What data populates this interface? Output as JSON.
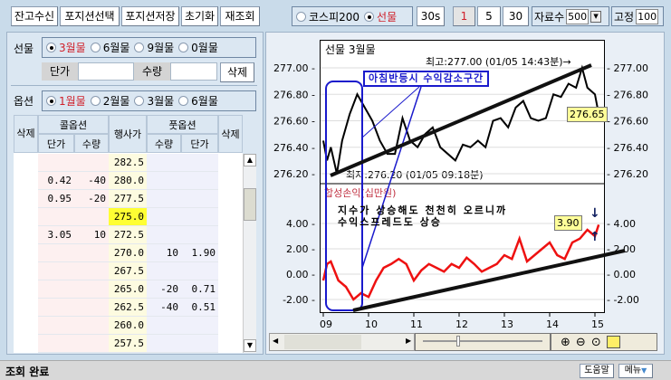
{
  "toolbar": {
    "buttons": [
      "잔고수신",
      "포지션선택",
      "포지션저장",
      "초기화",
      "재조회"
    ]
  },
  "left": {
    "futures": {
      "label": "선물",
      "months": [
        "3월물",
        "6월물",
        "9월물",
        "0월물"
      ],
      "selected": 0,
      "price_label": "단가",
      "price_value": "",
      "qty_label": "수량",
      "qty_value": "",
      "delete": "삭제"
    },
    "options": {
      "label": "옵션",
      "months": [
        "1월물",
        "2월물",
        "3월물",
        "6월물"
      ],
      "selected": 0
    },
    "table": {
      "headers": {
        "del": "삭제",
        "call": "콜옵션",
        "put": "풋옵션",
        "strike": "행사가",
        "price": "단가",
        "qty": "수량"
      },
      "atm": "275.0",
      "rows": [
        {
          "call_price": "",
          "call_qty": "",
          "strike": "282.5",
          "put_qty": "",
          "put_price": ""
        },
        {
          "call_price": "0.42",
          "call_qty": "-40",
          "strike": "280.0",
          "put_qty": "",
          "put_price": ""
        },
        {
          "call_price": "0.95",
          "call_qty": "-20",
          "strike": "277.5",
          "put_qty": "",
          "put_price": ""
        },
        {
          "call_price": "",
          "call_qty": "",
          "strike": "275.0",
          "put_qty": "",
          "put_price": ""
        },
        {
          "call_price": "3.05",
          "call_qty": "10",
          "strike": "272.5",
          "put_qty": "",
          "put_price": ""
        },
        {
          "call_price": "",
          "call_qty": "",
          "strike": "270.0",
          "put_qty": "10",
          "put_price": "1.90"
        },
        {
          "call_price": "",
          "call_qty": "",
          "strike": "267.5",
          "put_qty": "",
          "put_price": ""
        },
        {
          "call_price": "",
          "call_qty": "",
          "strike": "265.0",
          "put_qty": "-20",
          "put_price": "0.71"
        },
        {
          "call_price": "",
          "call_qty": "",
          "strike": "262.5",
          "put_qty": "-40",
          "put_price": "0.51"
        },
        {
          "call_price": "",
          "call_qty": "",
          "strike": "260.0",
          "put_qty": "",
          "put_price": ""
        },
        {
          "call_price": "",
          "call_qty": "",
          "strike": "257.5",
          "put_qty": "",
          "put_price": ""
        }
      ]
    }
  },
  "right": {
    "source": {
      "options": [
        "코스피200",
        "선물"
      ],
      "selected": 1
    },
    "intervals": [
      "30s",
      "1",
      "5",
      "30"
    ],
    "interval_selected": 1,
    "count_label": "자료수",
    "count_value": "500",
    "fixed_label": "고정",
    "fixed_value": "100"
  },
  "status": {
    "text": "조회 완료",
    "help": "도움말",
    "menu": "메뉴"
  },
  "chart_data": [
    {
      "type": "line",
      "title": "선물 3월물",
      "ylim": [
        276.1,
        277.2
      ],
      "yticks": [
        "277.00",
        "276.80",
        "276.60",
        "276.40",
        "276.20"
      ],
      "current": "276.65",
      "high_label": "최고:277.00 (01/05 14:43분)→",
      "low_label": "최저:276.20 (01/05 09:18분)",
      "color": "#000000",
      "x": [
        "09:00",
        "09:05",
        "09:10",
        "09:18",
        "09:25",
        "09:35",
        "09:45",
        "09:55",
        "10:05",
        "10:15",
        "10:25",
        "10:35",
        "10:45",
        "10:55",
        "11:05",
        "11:15",
        "11:25",
        "11:35",
        "11:45",
        "11:55",
        "12:05",
        "12:15",
        "12:25",
        "12:35",
        "12:45",
        "12:55",
        "13:05",
        "13:15",
        "13:25",
        "13:35",
        "13:45",
        "13:55",
        "14:05",
        "14:15",
        "14:25",
        "14:35",
        "14:43",
        "14:50",
        "15:00",
        "15:05"
      ],
      "values": [
        276.45,
        276.3,
        276.4,
        276.2,
        276.45,
        276.65,
        276.8,
        276.7,
        276.6,
        276.45,
        276.35,
        276.35,
        276.62,
        276.45,
        276.4,
        276.5,
        276.55,
        276.4,
        276.35,
        276.3,
        276.42,
        276.4,
        276.45,
        276.4,
        276.6,
        276.62,
        276.55,
        276.7,
        276.75,
        276.62,
        276.6,
        276.62,
        276.8,
        276.78,
        276.88,
        276.85,
        277.0,
        276.85,
        276.8,
        276.65
      ]
    },
    {
      "type": "line",
      "title": "합성손익(십만원)",
      "ylim": [
        -3,
        6
      ],
      "yticks": [
        "4.00",
        "2.00",
        "0.00",
        "-2.00"
      ],
      "current": "3.90",
      "color": "#ee1111",
      "xticks": [
        "09",
        "10",
        "11",
        "12",
        "13",
        "14",
        "15"
      ],
      "x": [
        "09:00",
        "09:05",
        "09:10",
        "09:20",
        "09:30",
        "09:40",
        "09:50",
        "10:00",
        "10:10",
        "10:20",
        "10:30",
        "10:40",
        "10:50",
        "11:00",
        "11:10",
        "11:20",
        "11:30",
        "11:40",
        "11:50",
        "12:00",
        "12:10",
        "12:20",
        "12:30",
        "12:40",
        "12:50",
        "13:00",
        "13:10",
        "13:20",
        "13:30",
        "13:40",
        "13:50",
        "14:00",
        "14:10",
        "14:20",
        "14:30",
        "14:40",
        "14:50",
        "15:00",
        "15:05"
      ],
      "values": [
        -0.5,
        0.8,
        1.0,
        -0.5,
        -1.0,
        -2.0,
        -1.5,
        -1.8,
        -0.5,
        0.5,
        0.8,
        1.2,
        0.8,
        -0.5,
        0.3,
        0.8,
        0.5,
        0.2,
        0.8,
        0.5,
        1.3,
        0.8,
        0.2,
        0.5,
        0.8,
        1.5,
        1.2,
        2.8,
        1.0,
        1.5,
        2.0,
        2.5,
        1.5,
        1.2,
        2.5,
        2.8,
        3.5,
        3.0,
        3.9
      ]
    }
  ],
  "annotations": {
    "box_label": "아침반등시 수익감소구간",
    "note_line1": "지수가 상승해도 천천히 오르니까",
    "note_line2": "수익스프레드도 상승",
    "color": "#1a1acc"
  }
}
